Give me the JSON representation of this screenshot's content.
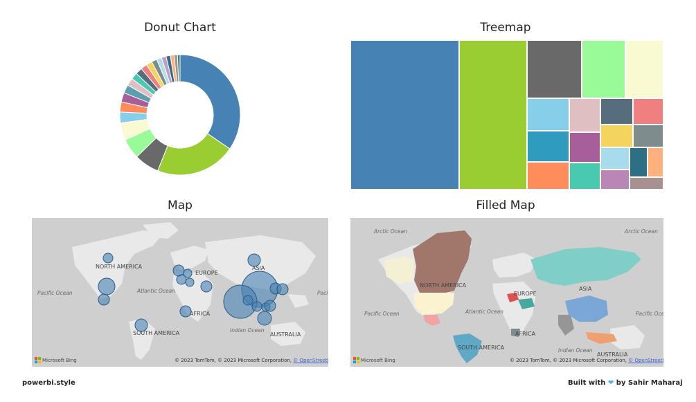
{
  "titles": {
    "donut": "Donut Chart",
    "treemap": "Treemap",
    "map": "Map",
    "filled_map": "Filled Map"
  },
  "chart_data": [
    {
      "type": "pie",
      "title": "Donut Chart",
      "values": [
        30.5,
        19.0,
        5.9,
        4.8,
        4.1,
        2.6,
        2.4,
        2.2,
        2.0,
        1.8,
        1.6,
        1.6,
        1.5,
        1.4,
        1.3,
        1.2,
        1.1,
        1.0,
        0.9,
        0.8,
        0.6
      ],
      "colors": [
        "#4682b4",
        "#9acd32",
        "#696969",
        "#98fb98",
        "#fafad2",
        "#87ceeb",
        "#ff8c5a",
        "#a65f9b",
        "#5c9ead",
        "#e0bfc3",
        "#48c9b0",
        "#566d7e",
        "#f08080",
        "#f4d35e",
        "#7f8c8d",
        "#b0e0e6",
        "#c49ac8",
        "#2e6f86",
        "#ffb07c",
        "#a89090",
        "#3b8070"
      ]
    },
    {
      "type": "treemap",
      "title": "Treemap",
      "values": [
        30.5,
        19.0,
        5.9,
        4.8,
        4.1,
        2.6,
        2.4,
        2.2,
        2.0,
        1.8,
        1.6,
        1.6,
        1.5,
        1.4,
        1.3,
        1.2,
        1.1,
        1.0,
        0.9,
        0.8
      ],
      "colors": [
        "#4682b4",
        "#9acd32",
        "#696969",
        "#98fb98",
        "#fafad2",
        "#87ceeb",
        "#2e9bbf",
        "#ff8c5a",
        "#e0bfc3",
        "#a65f9b",
        "#48c9b0",
        "#566d7e",
        "#f08080",
        "#f4d35e",
        "#7f8c8d",
        "#a8dced",
        "#b986b5",
        "#2e6f86",
        "#ffb07c",
        "#a89090"
      ]
    }
  ],
  "map": {
    "labels": {
      "north_america": "NORTH AMERICA",
      "south_america": "SOUTH AMERICA",
      "europe": "EUROPE",
      "asia": "ASIA",
      "africa": "AFRICA",
      "australia": "AUSTRALIA",
      "pacific": "Pacific Ocean",
      "atlantic": "Atlantic Ocean",
      "indian": "Indian Ocean",
      "arctic": "Arctic Ocean"
    },
    "attribution_text": "© 2023 TomTom, © 2023 Microsoft Corporation, ",
    "attribution_link": "© OpenStreetMap",
    "bing": "Microsoft Bing",
    "bubble_color": "#4682b4"
  },
  "footer": {
    "left": "powerbi.style",
    "right_prefix": "Built with",
    "heart_icon": "blue-heart-icon",
    "right_suffix": "by Sahir Maharaj"
  }
}
